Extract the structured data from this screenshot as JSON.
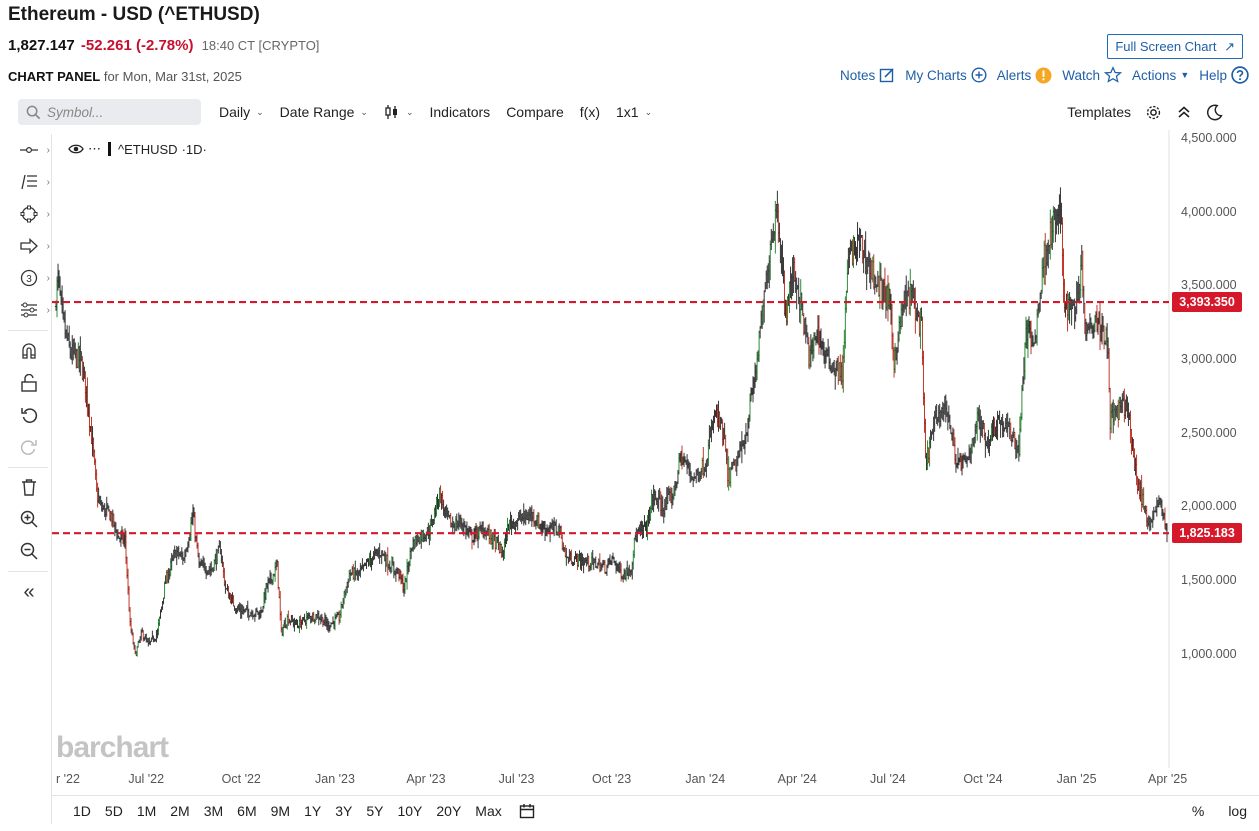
{
  "header": {
    "title": "Ethereum - USD (^ETHUSD)",
    "last": "1,827.147",
    "change": "-52.261 (-2.78%)",
    "time": "18:40 CT [CRYPTO]",
    "fullscreen_label": "Full Screen Chart",
    "panel_label": "CHART PANEL",
    "panel_date": "for Mon, Mar 31st, 2025"
  },
  "actions": {
    "notes": "Notes",
    "mycharts": "My Charts",
    "alerts": "Alerts",
    "watch": "Watch",
    "actions": "Actions",
    "help": "Help"
  },
  "toolbar": {
    "symbol_placeholder": "Symbol...",
    "interval": "Daily",
    "date_range": "Date Range",
    "indicators": "Indicators",
    "compare": "Compare",
    "fx": "f(x)",
    "layout": "1x1",
    "templates": "Templates"
  },
  "legend": {
    "symbol": "^ETHUSD",
    "interval": "·1D·"
  },
  "watermark": "barchart",
  "bottom": {
    "ranges": [
      "1D",
      "5D",
      "1M",
      "2M",
      "3M",
      "6M",
      "9M",
      "1Y",
      "3Y",
      "5Y",
      "10Y",
      "20Y",
      "Max"
    ],
    "percent": "%",
    "log": "log"
  },
  "colors": {
    "up": "#2e8b3a",
    "down": "#c0392b",
    "bar": "#333333",
    "hline": "#d5182a",
    "accent": "#1f5fa8"
  },
  "chart_data": {
    "type": "ohlc",
    "symbol": "^ETHUSD",
    "interval": "1D",
    "ylim": [
      700,
      4500
    ],
    "y_ticks": [
      "4,500.000",
      "4,000.000",
      "3,500.000",
      "3,000.000",
      "2,500.000",
      "2,000.000",
      "1,500.000",
      "1,000.000"
    ],
    "y_tick_values": [
      4500,
      4000,
      3500,
      3000,
      2500,
      2000,
      1500,
      1000
    ],
    "x_ticks": [
      "r '22",
      "Jul '22",
      "Oct '22",
      "Jan '23",
      "Apr '23",
      "Jul '23",
      "Oct '23",
      "Jan '24",
      "Apr '24",
      "Jul '24",
      "Oct '24",
      "Jan '25",
      "Apr '25"
    ],
    "x_tick_dates": [
      "2022-04-01",
      "2022-07-01",
      "2022-10-01",
      "2023-01-01",
      "2023-04-01",
      "2023-07-01",
      "2023-10-01",
      "2024-01-01",
      "2024-04-01",
      "2024-07-01",
      "2024-10-01",
      "2025-01-01",
      "2025-04-01"
    ],
    "x_range": [
      "2022-04-01",
      "2025-04-01"
    ],
    "horizontal_lines": [
      {
        "value": 3393.35,
        "label": "3,393.350"
      },
      {
        "value": 1825.183,
        "label": "1,825.183"
      }
    ],
    "close_path": [
      [
        "2022-04-01",
        3450
      ],
      [
        "2022-04-03",
        3540
      ],
      [
        "2022-04-08",
        3250
      ],
      [
        "2022-04-15",
        3050
      ],
      [
        "2022-04-25",
        3000
      ],
      [
        "2022-05-01",
        2800
      ],
      [
        "2022-05-08",
        2350
      ],
      [
        "2022-05-11",
        2100
      ],
      [
        "2022-05-15",
        2000
      ],
      [
        "2022-05-25",
        1950
      ],
      [
        "2022-06-01",
        1800
      ],
      [
        "2022-06-08",
        1780
      ],
      [
        "2022-06-13",
        1200
      ],
      [
        "2022-06-18",
        1000
      ],
      [
        "2022-06-25",
        1150
      ],
      [
        "2022-07-01",
        1060
      ],
      [
        "2022-07-10",
        1150
      ],
      [
        "2022-07-18",
        1500
      ],
      [
        "2022-07-28",
        1700
      ],
      [
        "2022-08-05",
        1650
      ],
      [
        "2022-08-14",
        1950
      ],
      [
        "2022-08-20",
        1600
      ],
      [
        "2022-09-01",
        1580
      ],
      [
        "2022-09-10",
        1720
      ],
      [
        "2022-09-15",
        1450
      ],
      [
        "2022-09-25",
        1320
      ],
      [
        "2022-10-01",
        1300
      ],
      [
        "2022-10-10",
        1290
      ],
      [
        "2022-10-20",
        1280
      ],
      [
        "2022-10-25",
        1450
      ],
      [
        "2022-11-05",
        1600
      ],
      [
        "2022-11-09",
        1150
      ],
      [
        "2022-11-15",
        1250
      ],
      [
        "2022-11-25",
        1200
      ],
      [
        "2022-12-05",
        1250
      ],
      [
        "2022-12-15",
        1270
      ],
      [
        "2022-12-25",
        1200
      ],
      [
        "2023-01-05",
        1250
      ],
      [
        "2023-01-15",
        1550
      ],
      [
        "2023-01-25",
        1550
      ],
      [
        "2023-02-05",
        1650
      ],
      [
        "2023-02-15",
        1700
      ],
      [
        "2023-02-25",
        1600
      ],
      [
        "2023-03-05",
        1550
      ],
      [
        "2023-03-10",
        1450
      ],
      [
        "2023-03-18",
        1750
      ],
      [
        "2023-03-25",
        1800
      ],
      [
        "2023-04-05",
        1850
      ],
      [
        "2023-04-14",
        2100
      ],
      [
        "2023-04-20",
        1950
      ],
      [
        "2023-04-26",
        1880
      ],
      [
        "2023-05-05",
        1900
      ],
      [
        "2023-05-15",
        1800
      ],
      [
        "2023-05-28",
        1850
      ],
      [
        "2023-06-10",
        1750
      ],
      [
        "2023-06-15",
        1680
      ],
      [
        "2023-06-21",
        1880
      ],
      [
        "2023-07-01",
        1920
      ],
      [
        "2023-07-14",
        1950
      ],
      [
        "2023-07-25",
        1860
      ],
      [
        "2023-08-10",
        1850
      ],
      [
        "2023-08-17",
        1650
      ],
      [
        "2023-08-25",
        1650
      ],
      [
        "2023-09-05",
        1630
      ],
      [
        "2023-09-15",
        1620
      ],
      [
        "2023-09-25",
        1590
      ],
      [
        "2023-10-01",
        1650
      ],
      [
        "2023-10-12",
        1540
      ],
      [
        "2023-10-20",
        1600
      ],
      [
        "2023-10-24",
        1800
      ],
      [
        "2023-11-05",
        1880
      ],
      [
        "2023-11-10",
        2080
      ],
      [
        "2023-11-20",
        2000
      ],
      [
        "2023-12-01",
        2100
      ],
      [
        "2023-12-08",
        2350
      ],
      [
        "2023-12-20",
        2200
      ],
      [
        "2024-01-01",
        2300
      ],
      [
        "2024-01-11",
        2650
      ],
      [
        "2024-01-20",
        2450
      ],
      [
        "2024-01-23",
        2200
      ],
      [
        "2024-02-01",
        2300
      ],
      [
        "2024-02-10",
        2500
      ],
      [
        "2024-02-20",
        2950
      ],
      [
        "2024-02-28",
        3400
      ],
      [
        "2024-03-05",
        3800
      ],
      [
        "2024-03-12",
        4050
      ],
      [
        "2024-03-20",
        3300
      ],
      [
        "2024-03-27",
        3600
      ],
      [
        "2024-04-01",
        3500
      ],
      [
        "2024-04-13",
        3000
      ],
      [
        "2024-04-20",
        3200
      ],
      [
        "2024-04-30",
        3000
      ],
      [
        "2024-05-15",
        2900
      ],
      [
        "2024-05-21",
        3700
      ],
      [
        "2024-06-01",
        3800
      ],
      [
        "2024-06-10",
        3650
      ],
      [
        "2024-06-20",
        3500
      ],
      [
        "2024-06-30",
        3400
      ],
      [
        "2024-07-05",
        3000
      ],
      [
        "2024-07-15",
        3400
      ],
      [
        "2024-07-22",
        3450
      ],
      [
        "2024-08-01",
        3200
      ],
      [
        "2024-08-05",
        2300
      ],
      [
        "2024-08-15",
        2600
      ],
      [
        "2024-08-25",
        2700
      ],
      [
        "2024-09-05",
        2300
      ],
      [
        "2024-09-15",
        2300
      ],
      [
        "2024-09-25",
        2600
      ],
      [
        "2024-10-05",
        2450
      ],
      [
        "2024-10-15",
        2600
      ],
      [
        "2024-10-28",
        2500
      ],
      [
        "2024-11-05",
        2400
      ],
      [
        "2024-11-12",
        3200
      ],
      [
        "2024-11-20",
        3100
      ],
      [
        "2024-11-30",
        3700
      ],
      [
        "2024-12-08",
        3900
      ],
      [
        "2024-12-16",
        4000
      ],
      [
        "2024-12-20",
        3400
      ],
      [
        "2024-12-30",
        3350
      ],
      [
        "2025-01-06",
        3650
      ],
      [
        "2025-01-10",
        3200
      ],
      [
        "2025-01-20",
        3300
      ],
      [
        "2025-01-25",
        3250
      ],
      [
        "2025-02-01",
        3100
      ],
      [
        "2025-02-03",
        2600
      ],
      [
        "2025-02-10",
        2650
      ],
      [
        "2025-02-20",
        2700
      ],
      [
        "2025-02-25",
        2400
      ],
      [
        "2025-03-01",
        2200
      ],
      [
        "2025-03-05",
        2100
      ],
      [
        "2025-03-10",
        1950
      ],
      [
        "2025-03-15",
        1900
      ],
      [
        "2025-03-20",
        1980
      ],
      [
        "2025-03-25",
        2050
      ],
      [
        "2025-03-31",
        1827.147
      ]
    ]
  }
}
